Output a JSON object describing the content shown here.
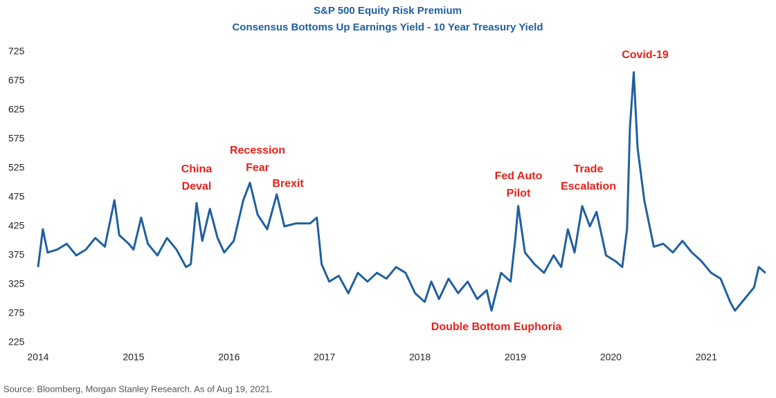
{
  "chart_data": {
    "type": "line",
    "title": "S&P 500 Equity Risk Premium",
    "subtitle": "Consensus Bottoms Up Earnings Yield - 10 Year Treasury Yield",
    "source": "Source: Bloomberg, Morgan Stanley Research. As of Aug 19, 2021.",
    "x": [
      2014.0,
      2014.05,
      2014.1,
      2014.2,
      2014.3,
      2014.4,
      2014.5,
      2014.6,
      2014.7,
      2014.8,
      2014.85,
      2014.95,
      2015.0,
      2015.08,
      2015.15,
      2015.25,
      2015.35,
      2015.45,
      2015.55,
      2015.6,
      2015.66,
      2015.72,
      2015.8,
      2015.88,
      2015.95,
      2016.05,
      2016.15,
      2016.22,
      2016.3,
      2016.4,
      2016.5,
      2016.58,
      2016.7,
      2016.85,
      2016.92,
      2016.97,
      2017.05,
      2017.15,
      2017.25,
      2017.35,
      2017.45,
      2017.55,
      2017.65,
      2017.75,
      2017.85,
      2017.95,
      2018.05,
      2018.12,
      2018.2,
      2018.3,
      2018.4,
      2018.5,
      2018.6,
      2018.7,
      2018.75,
      2018.85,
      2018.95,
      2019.0,
      2019.03,
      2019.1,
      2019.2,
      2019.3,
      2019.4,
      2019.48,
      2019.55,
      2019.62,
      2019.7,
      2019.78,
      2019.85,
      2019.95,
      2020.05,
      2020.12,
      2020.17,
      2020.2,
      2020.24,
      2020.28,
      2020.35,
      2020.45,
      2020.55,
      2020.65,
      2020.75,
      2020.85,
      2020.95,
      2021.05,
      2021.15,
      2021.25,
      2021.3,
      2021.4,
      2021.5,
      2021.55,
      2021.62
    ],
    "series": [
      {
        "name": "Equity Risk Premium",
        "color": "#1f5fa0",
        "values": [
          355,
          420,
          380,
          385,
          395,
          375,
          385,
          405,
          390,
          470,
          410,
          395,
          385,
          440,
          395,
          375,
          405,
          385,
          355,
          360,
          465,
          400,
          455,
          405,
          380,
          400,
          470,
          500,
          445,
          420,
          480,
          425,
          430,
          430,
          440,
          360,
          330,
          340,
          310,
          345,
          330,
          345,
          335,
          355,
          345,
          310,
          295,
          330,
          300,
          335,
          310,
          330,
          300,
          315,
          280,
          345,
          330,
          405,
          460,
          380,
          360,
          345,
          375,
          355,
          420,
          380,
          460,
          425,
          450,
          375,
          365,
          355,
          420,
          595,
          690,
          560,
          470,
          390,
          395,
          380,
          400,
          380,
          365,
          345,
          335,
          295,
          280,
          300,
          320,
          355,
          345
        ]
      }
    ],
    "xlim": [
      2014,
      2021.7
    ],
    "xticks": [
      2014,
      2015,
      2016,
      2017,
      2018,
      2019,
      2020,
      2021
    ],
    "ylim": [
      225,
      725
    ],
    "yticks": [
      225,
      275,
      325,
      375,
      425,
      475,
      525,
      575,
      625,
      675,
      725
    ],
    "grid": false,
    "annotations": [
      [
        "Covid-19"
      ],
      [
        "Recession",
        "Fear"
      ],
      [
        "China",
        "Deval"
      ],
      [
        "Brexit"
      ],
      [
        "Fed Auto",
        "Pilot"
      ],
      [
        "Trade",
        "Escalation"
      ],
      [
        "Double Bottom Euphoria"
      ]
    ]
  }
}
